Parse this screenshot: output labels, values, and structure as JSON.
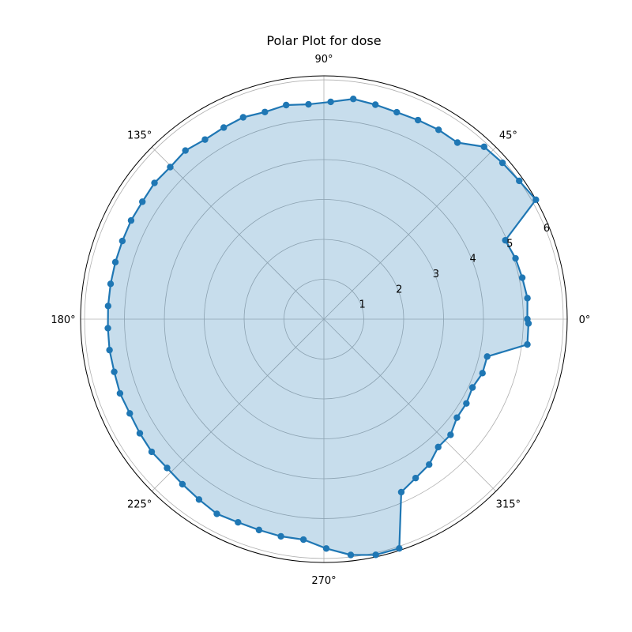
{
  "chart_data": {
    "type": "polar-line",
    "title": "Polar Plot for dose",
    "angle_unit": "degrees",
    "angle_ticks": [
      "0°",
      "45°",
      "90°",
      "135°",
      "180°",
      "225°",
      "270°",
      "315°"
    ],
    "radial_ticks": [
      "1",
      "2",
      "3",
      "4",
      "5",
      "6"
    ],
    "rlim": [
      0,
      6.1
    ],
    "grid": true,
    "fill": true,
    "colors": {
      "line": "#1f77b4",
      "fill": "#1f77b4"
    },
    "series": [
      {
        "theta": [
          0,
          5.9,
          11.8,
          17.6,
          23.5,
          29.4,
          35.3,
          41.2,
          47.1,
          52.9,
          58.8,
          64.7,
          70.6,
          76.5,
          82.4,
          88.2,
          94.1,
          100,
          105.9,
          111.8,
          117.6,
          123.5,
          129.4,
          135.3,
          141.2,
          147.1,
          152.9,
          158.8,
          164.7,
          170.6,
          176.5,
          182.4,
          188.2,
          194.1,
          200,
          205.9,
          211.8,
          217.6,
          223.5,
          229.4,
          235.3,
          241.2,
          247.1,
          252.9,
          258.8,
          264.7,
          270.6,
          276.5,
          282.4,
          288.2,
          294.1,
          300,
          305.9,
          311.8,
          317.6,
          323.5,
          329.4,
          335.3,
          341.2,
          347.1,
          352.9,
          358.8
        ],
        "r": [
          5.1,
          5.13,
          5.08,
          5.04,
          4.96,
          6.1,
          6.0,
          5.95,
          5.9,
          5.55,
          5.55,
          5.52,
          5.5,
          5.53,
          5.57,
          5.45,
          5.4,
          5.45,
          5.4,
          5.45,
          5.42,
          5.4,
          5.47,
          5.42,
          5.45,
          5.42,
          5.43,
          5.42,
          5.42,
          5.42,
          5.42,
          5.42,
          5.43,
          5.42,
          5.44,
          5.41,
          5.43,
          5.45,
          5.42,
          5.45,
          5.5,
          5.57,
          5.53,
          5.53,
          5.55,
          5.55,
          5.75,
          5.95,
          6.05,
          6.05,
          4.75,
          4.6,
          4.5,
          4.3,
          4.3,
          4.15,
          4.15,
          4.1,
          4.2,
          4.2,
          5.14,
          5.13
        ]
      }
    ]
  }
}
